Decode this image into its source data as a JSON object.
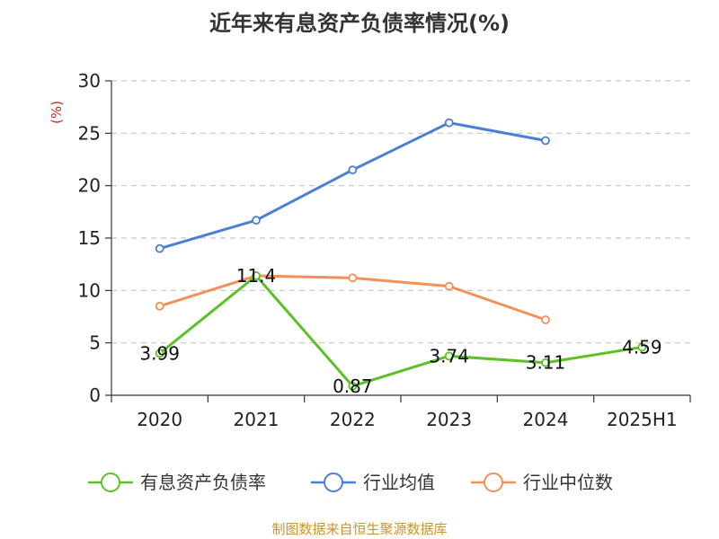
{
  "chart_data": {
    "type": "line",
    "title": "近年来有息资产负债率情况(%)",
    "ylabel": "(%)",
    "ylim": [
      0,
      30
    ],
    "yticks": [
      0,
      5,
      10,
      15,
      20,
      25,
      30
    ],
    "grid": true,
    "legend_position": "bottom",
    "categories": [
      "2020",
      "2021",
      "2022",
      "2023",
      "2024",
      "2025H1"
    ],
    "series": [
      {
        "name": "有息资产负债率",
        "color": "#5cc126",
        "values": [
          3.99,
          11.4,
          0.87,
          3.74,
          3.11,
          4.59
        ],
        "labels": [
          "3.99",
          "11.4",
          "0.87",
          "3.74",
          "3.11",
          "4.59"
        ]
      },
      {
        "name": "行业均值",
        "color": "#4b7fd6",
        "values": [
          14.0,
          16.7,
          21.5,
          26.0,
          24.3,
          null
        ]
      },
      {
        "name": "行业中位数",
        "color": "#f5905a",
        "values": [
          8.5,
          11.4,
          11.2,
          10.4,
          7.2,
          null
        ]
      }
    ]
  },
  "unit_color": "#e02020",
  "source_text": "制图数据来自恒生聚源数据库",
  "source_color": "#c8962d"
}
